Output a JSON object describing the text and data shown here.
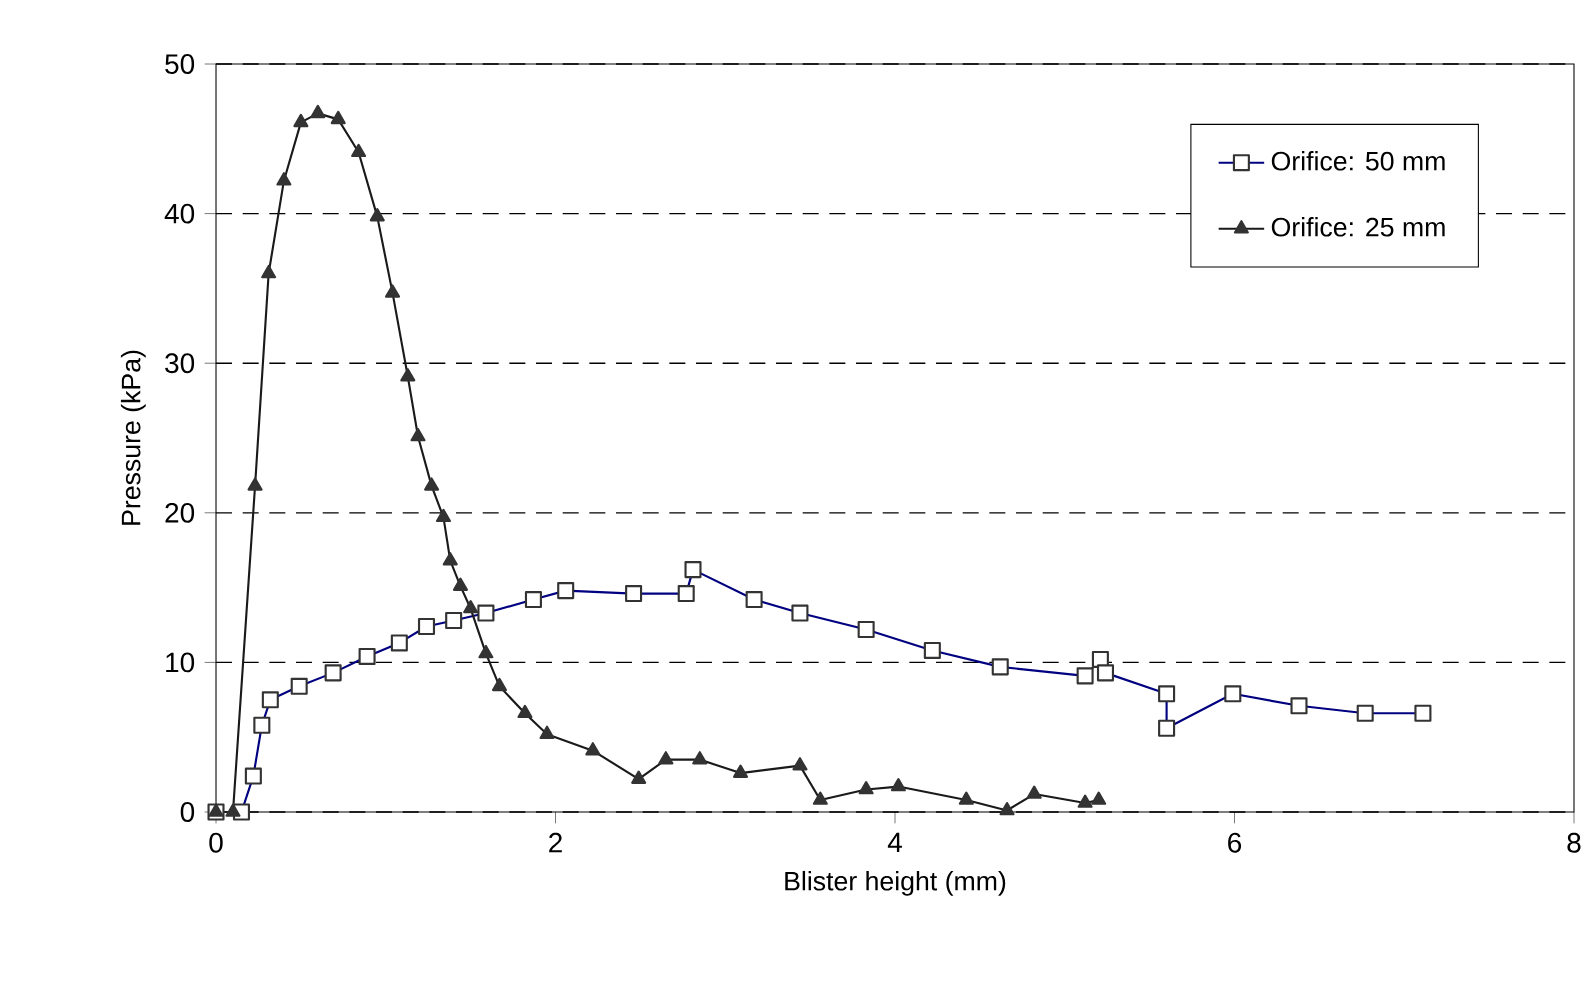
{
  "chart_data": {
    "type": "line",
    "xlabel": "Blister height (mm)",
    "ylabel": "Pressure (kPa)",
    "xlim": [
      0,
      8
    ],
    "ylim": [
      0,
      50
    ],
    "xticks": [
      0,
      2,
      4,
      6,
      8
    ],
    "yticks": [
      0,
      10,
      20,
      30,
      40,
      50
    ],
    "grid": "y",
    "legend": "top right",
    "series": [
      {
        "name": "Orifice: 50 mm",
        "color": "#000080",
        "marker": "square",
        "x": [
          0,
          0.15,
          0.22,
          0.27,
          0.32,
          0.49,
          0.69,
          0.89,
          1.08,
          1.24,
          1.4,
          1.59,
          1.87,
          2.06,
          2.46,
          2.77,
          2.81,
          3.17,
          3.44,
          3.83,
          4.22,
          4.62,
          5.12,
          5.21,
          5.24,
          5.6,
          5.6,
          5.99,
          6.38,
          6.77,
          7.11
        ],
        "values": [
          0,
          0,
          2.4,
          5.8,
          7.5,
          8.4,
          9.3,
          10.4,
          11.3,
          12.4,
          12.8,
          13.3,
          14.2,
          14.8,
          14.6,
          14.6,
          16.2,
          14.2,
          13.3,
          12.2,
          10.8,
          9.7,
          9.1,
          10.2,
          9.3,
          7.9,
          5.6,
          7.9,
          7.1,
          6.6,
          6.6
        ]
      },
      {
        "name": "Orifice: 25 mm",
        "color": "#1a1a1a",
        "marker": "triangle",
        "x": [
          0,
          0.1,
          0.23,
          0.31,
          0.4,
          0.5,
          0.6,
          0.72,
          0.84,
          0.95,
          1.04,
          1.13,
          1.19,
          1.27,
          1.34,
          1.38,
          1.44,
          1.5,
          1.59,
          1.67,
          1.82,
          1.95,
          2.22,
          2.49,
          2.65,
          2.85,
          3.09,
          3.44,
          3.56,
          3.83,
          4.02,
          4.42,
          4.66,
          4.82,
          5.12,
          5.2
        ],
        "values": [
          0,
          0,
          21.8,
          36,
          42.2,
          46.1,
          46.7,
          46.3,
          44.1,
          39.8,
          34.7,
          29.1,
          25.1,
          21.8,
          19.7,
          16.8,
          15.1,
          13.6,
          10.6,
          8.4,
          6.6,
          5.2,
          4.1,
          2.2,
          3.5,
          3.5,
          2.6,
          3.1,
          0.8,
          1.5,
          1.7,
          0.8,
          0.1,
          1.2,
          0.6,
          0.8
        ]
      }
    ]
  }
}
